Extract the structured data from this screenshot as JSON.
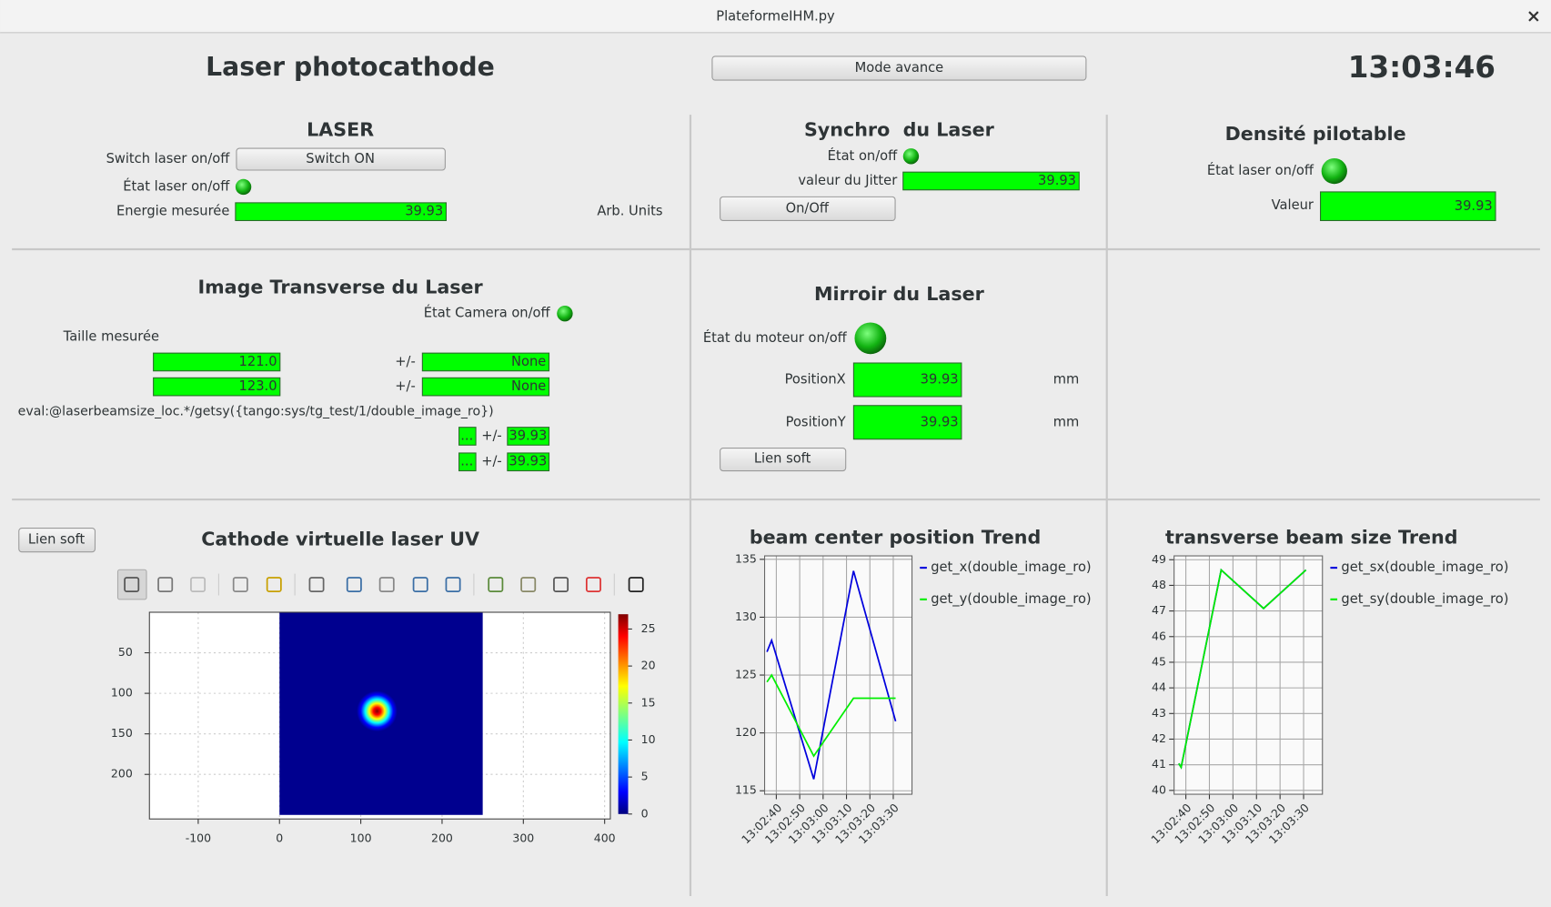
{
  "window": {
    "title": "PlateformeIHM.py"
  },
  "header": {
    "title": "Laser photocathode",
    "button": "Mode avance",
    "clock": "13:03:46"
  },
  "laser": {
    "title": "LASER",
    "switch_label": "Switch laser on/off",
    "switch_button": "Switch ON",
    "state_label": "État laser on/off",
    "energy_label": "Energie mesurée",
    "energy_value": "39.93",
    "energy_unit": "Arb. Units"
  },
  "synchro": {
    "title": "Synchro  du Laser",
    "state_label": "État on/off",
    "jitter_label": "valeur du Jitter",
    "jitter_value": "39.93",
    "button": "On/Off"
  },
  "density": {
    "title": "Densité pilotable",
    "state_label": "État laser on/off",
    "value_label": "Valeur",
    "value": "39.93"
  },
  "transverse": {
    "title": "Image Transverse du Laser",
    "camera_label": "État Camera on/off",
    "size_label": "Taille mesurée",
    "sizes": [
      {
        "value": "121.0",
        "sep": "+/-",
        "error": "None"
      },
      {
        "value": "123.0",
        "sep": "+/-",
        "error": "None"
      }
    ],
    "eval": "eval:@laserbeamsize_loc.*/getsy({tango:sys/tg_test/1/double_image_ro})",
    "extra": [
      {
        "value": "...",
        "sep": "+/-",
        "error": "39.93"
      },
      {
        "value": "...",
        "sep": "+/-",
        "error": "39.93"
      }
    ]
  },
  "mirror": {
    "title": "Mirroir du Laser",
    "motor_label": "État du moteur on/off",
    "positions": [
      {
        "label": "PositionX",
        "value": "39.93",
        "unit": "mm"
      },
      {
        "label": "PositionY",
        "value": "39.93",
        "unit": "mm"
      }
    ],
    "button": "Lien soft"
  },
  "cathode": {
    "button": "Lien soft"
  },
  "chart_data": [
    {
      "type": "heatmap",
      "title": "Cathode virtuelle laser UV",
      "xlim": [
        -160,
        407
      ],
      "ylim": [
        255,
        0
      ],
      "xticks": [
        -100,
        0,
        100,
        200,
        300,
        400
      ],
      "yticks": [
        50,
        100,
        150,
        200
      ],
      "grid": true,
      "image": {
        "x": [
          0,
          250
        ],
        "y": [
          0,
          250
        ],
        "center": [
          120,
          122
        ],
        "radius": 25
      },
      "colorbar": {
        "lim": [
          0,
          27
        ],
        "ticks": [
          0,
          5,
          10,
          15,
          20,
          25
        ]
      }
    },
    {
      "type": "line",
      "title": "beam center position Trend",
      "x": [
        "13:02:36",
        "13:02:38",
        "13:02:56",
        "13:03:13",
        "13:03:31"
      ],
      "series": [
        {
          "name": "get_x(double_image_ro)",
          "color": "#0000dd",
          "values": [
            127,
            128,
            116,
            134,
            121
          ]
        },
        {
          "name": "get_y(double_image_ro)",
          "color": "#00ee00",
          "values": [
            124.4,
            125,
            118,
            123,
            123
          ]
        }
      ],
      "xlim": [
        "13:02:35",
        "13:03:38"
      ],
      "ylim": [
        114.7,
        135.3
      ],
      "xticks": [
        "13:02:40",
        "13:02:50",
        "13:03:00",
        "13:03:10",
        "13:03:20",
        "13:03:30"
      ],
      "yticks": [
        115,
        120,
        125,
        130,
        135
      ],
      "grid": true
    },
    {
      "type": "line",
      "title": "transverse beam size Trend",
      "x": [
        "13:02:37",
        "13:02:38",
        "13:02:55",
        "13:03:13",
        "13:03:31"
      ],
      "series": [
        {
          "name": "get_sx(double_image_ro)",
          "color": "#0000dd",
          "values": [
            41.05,
            40.9,
            48.6,
            47.1,
            48.6
          ]
        },
        {
          "name": "get_sy(double_image_ro)",
          "color": "#00ee00",
          "values": [
            41.05,
            40.9,
            48.6,
            47.1,
            48.6
          ]
        }
      ],
      "xlim": [
        "13:02:35",
        "13:03:38"
      ],
      "ylim": [
        39.85,
        49.15
      ],
      "xticks": [
        "13:02:40",
        "13:02:50",
        "13:03:00",
        "13:03:10",
        "13:03:20",
        "13:03:30"
      ],
      "yticks": [
        40,
        41,
        42,
        43,
        44,
        45,
        46,
        47,
        48,
        49
      ],
      "grid": true
    }
  ]
}
